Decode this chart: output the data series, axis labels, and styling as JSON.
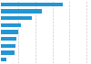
{
  "values": [
    180,
    120,
    90,
    58,
    50,
    46,
    43,
    40,
    15
  ],
  "bar_color": "#2196d3",
  "background_color": "#ffffff",
  "grid_color": "#cccccc",
  "xlim": [
    0,
    260
  ],
  "bar_height": 0.55,
  "figsize": [
    1.0,
    0.71
  ],
  "dpi": 100,
  "grid_x": [
    50,
    100,
    150,
    200,
    250
  ]
}
